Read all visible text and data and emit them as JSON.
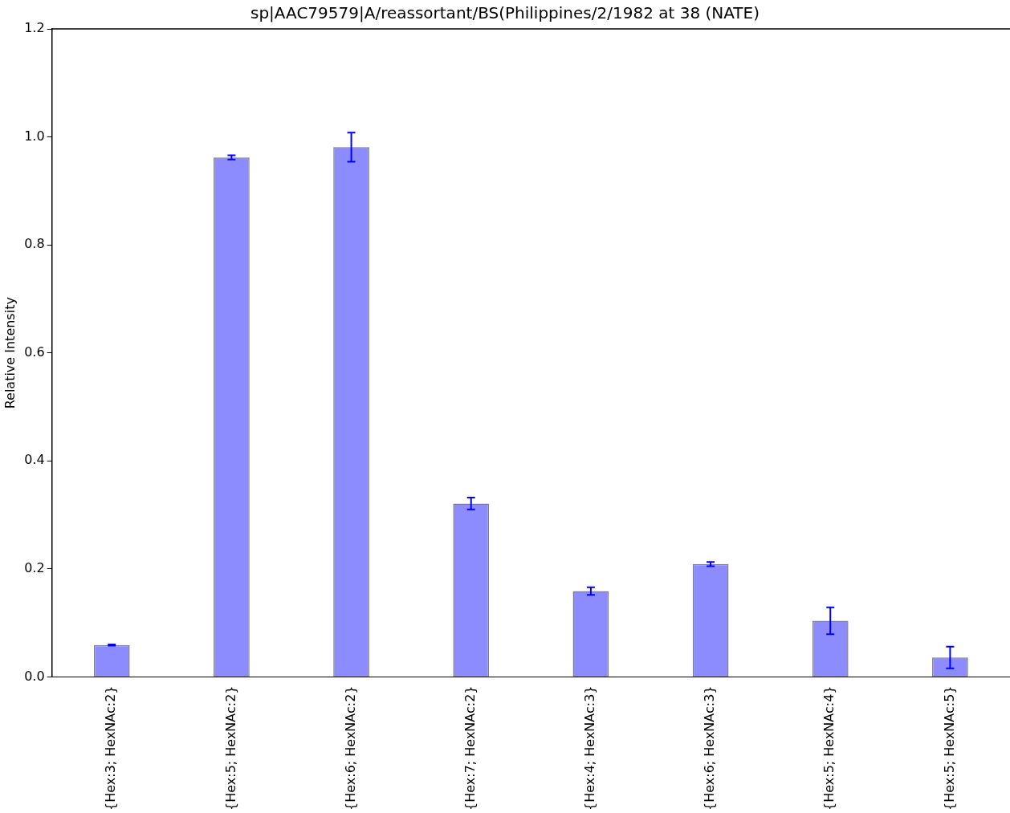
{
  "chart_data": {
    "type": "bar",
    "title": "sp|AAC79579|A/reassortant/BS(Philippines/2/1982 at 38 (NATE)",
    "ylabel": "Relative Intensity",
    "categories": [
      "{Hex:3; HexNAc:2}",
      "{Hex:5; HexNAc:2}",
      "{Hex:6; HexNAc:2}",
      "{Hex:7; HexNAc:2}",
      "{Hex:4; HexNAc:3}",
      "{Hex:6; HexNAc:3}",
      "{Hex:5; HexNAc:4}",
      "{Hex:5; HexNAc:5}"
    ],
    "values": [
      0.059,
      0.962,
      0.981,
      0.321,
      0.159,
      0.209,
      0.104,
      0.036
    ],
    "errors": [
      0.001,
      0.004,
      0.027,
      0.011,
      0.007,
      0.004,
      0.025,
      0.02
    ],
    "color": "#8c8cff",
    "ylim": [
      0,
      1.2
    ],
    "yticks": [
      {
        "value": 0,
        "label": "0.0"
      },
      {
        "value": 0.2,
        "label": "0.2"
      },
      {
        "value": 0.4,
        "label": "0.4"
      },
      {
        "value": 0.6,
        "label": "0.6"
      },
      {
        "value": 0.8,
        "label": "0.8"
      },
      {
        "value": 1,
        "label": "1.0"
      },
      {
        "value": 1.2,
        "label": "1.2"
      }
    ]
  }
}
